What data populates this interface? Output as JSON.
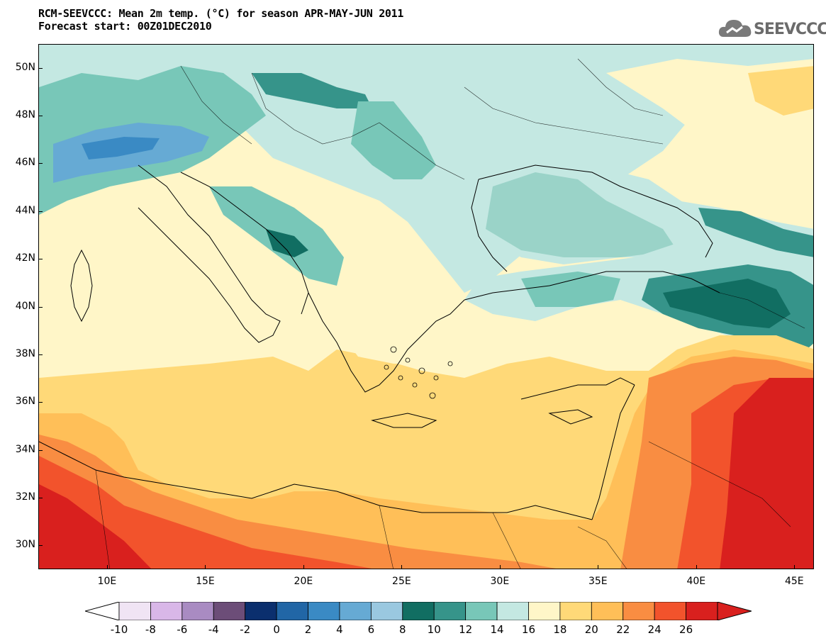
{
  "title": {
    "line1": "RCM-SEEVCCC: Mean 2m temp. (°C) for season APR-MAY-JUN 2011",
    "line2": "Forecast start: 00Z01DEC2010"
  },
  "logo": {
    "text": "SEEVCCC",
    "icon": "cloud-icon"
  },
  "map": {
    "lat_labels": [
      "50N",
      "48N",
      "46N",
      "44N",
      "42N",
      "40N",
      "38N",
      "36N",
      "34N",
      "32N",
      "30N"
    ],
    "lon_labels": [
      "10E",
      "15E",
      "20E",
      "25E",
      "30E",
      "35E",
      "40E",
      "45E"
    ],
    "lat_values": [
      50,
      48,
      46,
      44,
      42,
      40,
      38,
      36,
      34,
      32,
      30
    ],
    "lon_values": [
      10,
      15,
      20,
      25,
      30,
      35,
      40,
      45
    ],
    "lat_range": [
      29,
      51
    ],
    "lon_range": [
      6.5,
      46
    ]
  },
  "colorbar": {
    "labels": [
      "-10",
      "-8",
      "-6",
      "-4",
      "-2",
      "0",
      "2",
      "4",
      "6",
      "8",
      "10",
      "12",
      "14",
      "16",
      "18",
      "20",
      "22",
      "24",
      "26"
    ],
    "colors": [
      "#f0e4f4",
      "#d9b7e8",
      "#a98bc2",
      "#6c4d78",
      "#0b2f6e",
      "#2166a6",
      "#3a8ac4",
      "#66aad4",
      "#9ac8e0",
      "#116e62",
      "#36948a",
      "#78c7b8",
      "#c4e8e2",
      "#fff6c8",
      "#ffd978",
      "#ffbf58",
      "#f98d42",
      "#f2532c",
      "#d9201e"
    ],
    "low_extend": "#ffffff",
    "high_extend": "#d9201e"
  }
}
